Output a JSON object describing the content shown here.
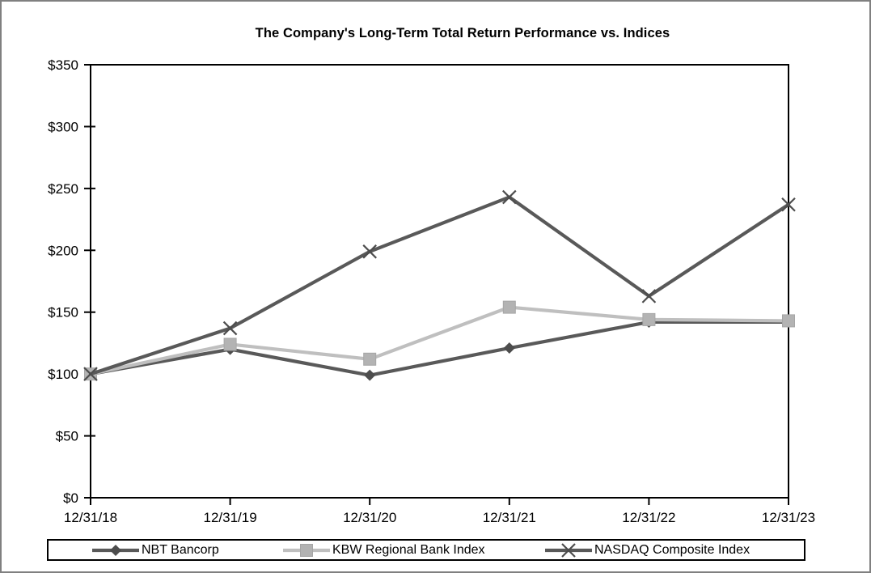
{
  "chart_data": {
    "type": "line",
    "title": "The Company's Long-Term Total Return Performance vs. Indices",
    "categories": [
      "12/31/18",
      "12/31/19",
      "12/31/20",
      "12/31/21",
      "12/31/22",
      "12/31/23"
    ],
    "series": [
      {
        "name": "NBT Bancorp",
        "marker": "diamond",
        "line_color": "#595959",
        "marker_color": "#4d4d4d",
        "values": [
          100,
          120,
          99,
          121,
          142,
          142
        ]
      },
      {
        "name": "KBW Regional Bank Index",
        "marker": "square",
        "line_color": "#bfbfbf",
        "marker_color": "#b3b3b3",
        "values": [
          100,
          124,
          112,
          154,
          144,
          143
        ]
      },
      {
        "name": "NASDAQ Composite Index",
        "marker": "x",
        "line_color": "#595959",
        "marker_color": "#4d4d4d",
        "values": [
          100,
          137,
          199,
          243,
          163,
          237
        ]
      }
    ],
    "ylim": [
      0,
      350
    ],
    "ytick_step": 50,
    "ytick_labels": [
      "$0",
      "$50",
      "$100",
      "$150",
      "$200",
      "$250",
      "$300",
      "$350"
    ],
    "xlabel": "",
    "ylabel": "",
    "grid": false,
    "legend_position": "bottom",
    "axis_color": "#000000",
    "plot_border": true
  }
}
